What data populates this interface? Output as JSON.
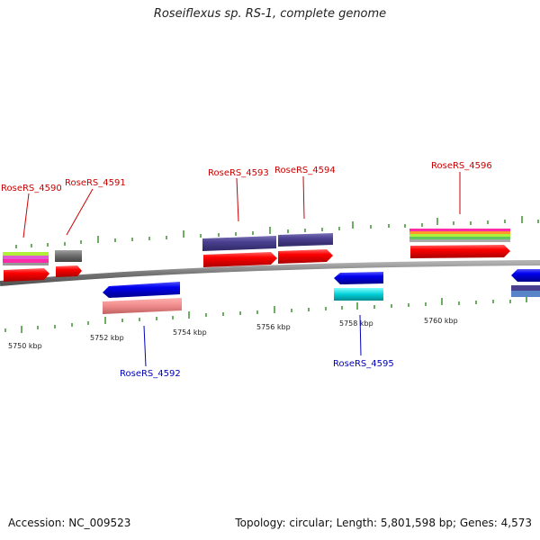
{
  "title": "Roseiflexus sp. RS-1, complete genome",
  "footer": {
    "accession": "Accession: NC_009523",
    "stats": "Topology: circular; Length: 5,801,598 bp; Genes: 4,573"
  },
  "colors": {
    "forward_label": "#cc0000",
    "reverse_label": "#0000bb",
    "backbone": "#7a7a7a",
    "tick": "#2f8a1f"
  },
  "genes": [
    {
      "label": "RoseRS_4590",
      "strand": "forward"
    },
    {
      "label": "RoseRS_4591",
      "strand": "forward"
    },
    {
      "label": "RoseRS_4592",
      "strand": "reverse"
    },
    {
      "label": "RoseRS_4593",
      "strand": "forward"
    },
    {
      "label": "RoseRS_4594",
      "strand": "forward"
    },
    {
      "label": "RoseRS_4595",
      "strand": "reverse"
    },
    {
      "label": "RoseRS_4596",
      "strand": "forward"
    }
  ],
  "scale_labels": [
    "5750 kbp",
    "5752 kbp",
    "5754 kbp",
    "5756 kbp",
    "5758 kbp",
    "5760 kbp"
  ]
}
